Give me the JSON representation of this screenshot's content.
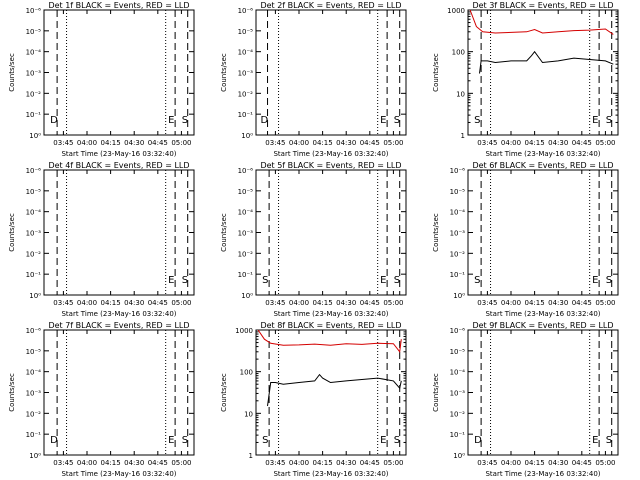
{
  "common": {
    "ylabel": "Counts/sec",
    "xlabel": "Start Time (23-May-16 03:32:40)",
    "x_tick_labels": [
      "03:45",
      "04:00",
      "04:15",
      "04:30",
      "04:45",
      "05:00"
    ],
    "y_tick_labels_empty": [
      "10⁰",
      "10⁻¹",
      "10⁻²",
      "10⁻³",
      "10⁻⁴",
      "10⁻⁵",
      "10⁻⁶"
    ],
    "y_tick_labels_log": [
      "1",
      "10",
      "100",
      "1000"
    ],
    "markers": {
      "d": "D",
      "e": "E",
      "s": "S"
    },
    "colors": {
      "events": "#000000",
      "lld": "#d40000"
    }
  },
  "chart_data": [
    {
      "type": "line",
      "title": "Det 1f BLACK = Events, RED = LLD",
      "x_unit": "time",
      "y_scale": "log",
      "ylim": [
        1,
        1000000
      ],
      "y_tick_style": "empty",
      "x_range": [
        "03:32:40",
        "05:08:00"
      ],
      "dashed_lines": [
        "03:41",
        "04:56",
        "05:04"
      ],
      "dotted_lines": [
        "03:47",
        "04:50"
      ],
      "markers": {
        "left": "D",
        "middle": "E",
        "right": "S"
      },
      "series": []
    },
    {
      "type": "line",
      "title": "Det 2f BLACK = Events, RED = LLD",
      "x_unit": "time",
      "y_scale": "log",
      "ylim": [
        1,
        1000000
      ],
      "y_tick_style": "empty",
      "x_range": [
        "03:32:40",
        "05:08:00"
      ],
      "dashed_lines": [
        "03:40",
        "04:56",
        "05:04"
      ],
      "dotted_lines": [
        "03:47",
        "04:50"
      ],
      "markers": {
        "left": "D",
        "middle": "E",
        "right": "S"
      },
      "series": []
    },
    {
      "type": "line",
      "title": "Det 3f BLACK = Events, RED = LLD",
      "x_unit": "time",
      "y_scale": "log",
      "ylim": [
        1,
        1000
      ],
      "y_tick_style": "log",
      "x_range": [
        "03:32:40",
        "05:08:00"
      ],
      "dashed_lines": [
        "03:41",
        "04:56",
        "05:04"
      ],
      "dotted_lines": [
        "03:47",
        "04:50"
      ],
      "markers": {
        "left": "S",
        "middle": "E",
        "right": "S"
      },
      "series": [
        {
          "name": "LLD",
          "color": "#d40000",
          "x": [
            "03:34",
            "03:38",
            "03:42",
            "03:50",
            "04:00",
            "04:10",
            "04:15",
            "04:20",
            "04:30",
            "04:40",
            "04:50",
            "05:00",
            "05:05"
          ],
          "values": [
            1000,
            400,
            300,
            280,
            290,
            300,
            340,
            280,
            300,
            320,
            330,
            350,
            260
          ]
        },
        {
          "name": "Events",
          "color": "#000000",
          "x": [
            "03:40",
            "03:41",
            "03:45",
            "03:50",
            "04:00",
            "04:10",
            "04:13",
            "04:15",
            "04:20",
            "04:30",
            "04:40",
            "04:50",
            "05:00",
            "05:05"
          ],
          "values": [
            30,
            60,
            60,
            55,
            60,
            60,
            80,
            100,
            55,
            60,
            70,
            65,
            60,
            50
          ]
        }
      ]
    },
    {
      "type": "line",
      "title": "Det 4f BLACK = Events, RED = LLD",
      "x_unit": "time",
      "y_scale": "log",
      "ylim": [
        1,
        1000000
      ],
      "y_tick_style": "empty",
      "x_range": [
        "03:32:40",
        "05:08:00"
      ],
      "dashed_lines": [
        "03:41",
        "04:56",
        "05:04"
      ],
      "dotted_lines": [
        "03:47",
        "04:50"
      ],
      "markers": {
        "left": "",
        "middle": "E",
        "right": "S"
      },
      "series": []
    },
    {
      "type": "line",
      "title": "Det 5f BLACK = Events, RED = LLD",
      "x_unit": "time",
      "y_scale": "log",
      "ylim": [
        1,
        1000000
      ],
      "y_tick_style": "empty",
      "x_range": [
        "03:32:40",
        "05:08:00"
      ],
      "dashed_lines": [
        "03:41",
        "04:56",
        "05:04"
      ],
      "dotted_lines": [
        "03:47",
        "04:50"
      ],
      "markers": {
        "left": "S",
        "middle": "E",
        "right": "S"
      },
      "series": []
    },
    {
      "type": "line",
      "title": "Det 6f BLACK = Events, RED = LLD",
      "x_unit": "time",
      "y_scale": "log",
      "ylim": [
        1,
        1000000
      ],
      "y_tick_style": "empty",
      "x_range": [
        "03:32:40",
        "05:08:00"
      ],
      "dashed_lines": [
        "03:41",
        "04:56",
        "05:04"
      ],
      "dotted_lines": [
        "03:47",
        "04:50"
      ],
      "markers": {
        "left": "S",
        "middle": "E",
        "right": "S"
      },
      "series": []
    },
    {
      "type": "line",
      "title": "Det 7f BLACK = Events, RED = LLD",
      "x_unit": "time",
      "y_scale": "log",
      "ylim": [
        1,
        1000000
      ],
      "y_tick_style": "empty",
      "x_range": [
        "03:32:40",
        "05:08:00"
      ],
      "dashed_lines": [
        "03:41",
        "04:56",
        "05:04"
      ],
      "dotted_lines": [
        "03:47",
        "04:50"
      ],
      "markers": {
        "left": "D",
        "middle": "E",
        "right": "S"
      },
      "series": []
    },
    {
      "type": "line",
      "title": "Det 8f BLACK = Events, RED = LLD",
      "x_unit": "time",
      "y_scale": "log",
      "ylim": [
        1,
        1000
      ],
      "y_tick_style": "log",
      "x_range": [
        "03:32:40",
        "05:08:00"
      ],
      "dashed_lines": [
        "03:41",
        "04:56",
        "05:04"
      ],
      "dotted_lines": [
        "03:47",
        "04:50"
      ],
      "markers": {
        "left": "S",
        "middle": "E",
        "right": "S"
      },
      "series": [
        {
          "name": "LLD",
          "color": "#d40000",
          "x": [
            "03:34",
            "03:38",
            "03:42",
            "03:50",
            "04:00",
            "04:10",
            "04:20",
            "04:30",
            "04:40",
            "04:50",
            "05:00",
            "05:04",
            "05:05"
          ],
          "values": [
            1000,
            600,
            480,
            430,
            440,
            460,
            430,
            470,
            450,
            480,
            470,
            300,
            600
          ]
        },
        {
          "name": "Events",
          "color": "#000000",
          "x": [
            "03:40",
            "03:42",
            "03:45",
            "03:50",
            "04:00",
            "04:10",
            "04:13",
            "04:15",
            "04:20",
            "04:30",
            "04:40",
            "04:50",
            "05:00",
            "05:04",
            "05:05"
          ],
          "values": [
            15,
            55,
            55,
            50,
            55,
            60,
            85,
            70,
            55,
            60,
            65,
            70,
            60,
            40,
            60
          ]
        }
      ]
    },
    {
      "type": "line",
      "title": "Det 9f BLACK = Events, RED = LLD",
      "x_unit": "time",
      "y_scale": "log",
      "ylim": [
        1,
        1000000
      ],
      "y_tick_style": "empty",
      "x_range": [
        "03:32:40",
        "05:08:00"
      ],
      "dashed_lines": [
        "03:41",
        "04:56",
        "05:04"
      ],
      "dotted_lines": [
        "03:47",
        "04:50"
      ],
      "markers": {
        "left": "D",
        "middle": "E",
        "right": "S"
      },
      "series": []
    }
  ]
}
